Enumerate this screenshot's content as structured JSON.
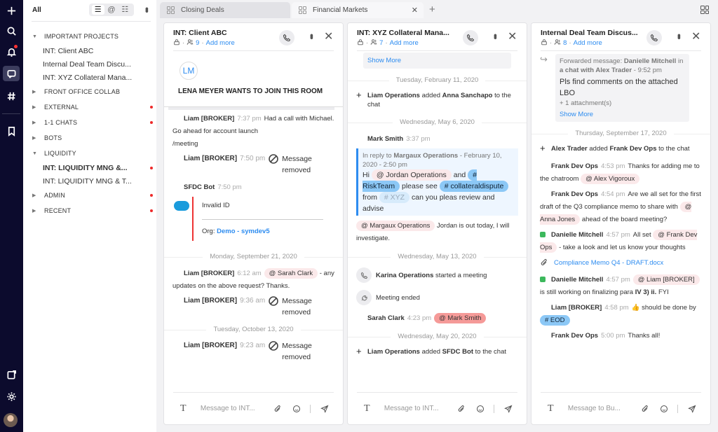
{
  "rail": {
    "icons": [
      "plus-icon",
      "search-icon",
      "bell-icon",
      "chat-icon",
      "hash-icon",
      "bookmark-icon",
      "new-window-icon",
      "gear-icon"
    ],
    "active": "chat-icon",
    "notification_color": "#ff3333"
  },
  "sidebar": {
    "filter_label": "All",
    "view_icons": [
      "list-view-icon",
      "mentions-icon",
      "compact-view-icon"
    ],
    "tree": [
      {
        "label": "IMPORTANT PROJECTS",
        "expanded": true,
        "unread": false,
        "children": [
          {
            "label": "INT: Client ABC"
          },
          {
            "label": "Internal Deal Team Discu..."
          },
          {
            "label": "INT: XYZ Collateral Mana..."
          }
        ]
      },
      {
        "label": "FRONT OFFICE COLLAB",
        "expanded": false,
        "unread": false
      },
      {
        "label": "EXTERNAL",
        "expanded": false,
        "unread": true
      },
      {
        "label": "1-1 CHATS",
        "expanded": false,
        "unread": true
      },
      {
        "label": "BOTS",
        "expanded": false,
        "unread": false
      },
      {
        "label": "LIQUIDITY",
        "expanded": true,
        "unread": false,
        "children": [
          {
            "label": "INT: LIQUIDITY MNG &...",
            "bold": true,
            "unread": true
          },
          {
            "label": "INT: LIQUIDITY MNG & T..."
          }
        ]
      },
      {
        "label": "ADMIN",
        "expanded": false,
        "unread": true
      },
      {
        "label": "RECENT",
        "expanded": false,
        "unread": true
      }
    ]
  },
  "tabs": [
    {
      "label": "Closing Deals",
      "active": false
    },
    {
      "label": "Financial Markets",
      "active": true
    }
  ],
  "columns": [
    {
      "title": "INT: Client ABC",
      "members": "9",
      "add_more": "Add more",
      "placeholder": "Message to INT...",
      "banner": {
        "initials": "LM",
        "text": "LENA MEYER WANTS TO JOIN THIS ROOM"
      },
      "items": [
        {
          "type": "msg",
          "author": "Liam [BROKER]",
          "time": "7:37 pm",
          "body": [
            {
              "k": "text",
              "t": "Had a call with Michael. Go ahead for account launch"
            }
          ]
        },
        {
          "type": "line",
          "body": [
            {
              "k": "text",
              "t": "/meeting"
            }
          ]
        },
        {
          "type": "removed",
          "author": "Liam [BROKER]",
          "time": "7:50 pm",
          "text": "Message removed"
        },
        {
          "type": "bot",
          "author": "SFDC Bot",
          "time": "7:50 pm",
          "line1": "Invalid ID",
          "org_label": "Org:",
          "org_link": "Demo - symdev5"
        },
        {
          "type": "date",
          "text": "Monday, September 21, 2020"
        },
        {
          "type": "msg",
          "author": "Liam [BROKER]",
          "time": "6:12 am",
          "body": [
            {
              "k": "mention",
              "t": "@ Sarah Clark"
            },
            {
              "k": "text",
              "t": " - any updates on the above request? Thanks."
            }
          ]
        },
        {
          "type": "removed",
          "author": "Liam [BROKER]",
          "time": "9:36 am",
          "text": "Message removed"
        },
        {
          "type": "date",
          "text": "Tuesday, October 13, 2020"
        },
        {
          "type": "removed",
          "author": "Liam [BROKER]",
          "time": "9:23 am",
          "text": "Message removed"
        }
      ]
    },
    {
      "title": "INT: XYZ Collateral Mana...",
      "members": "7",
      "add_more": "Add more",
      "placeholder": "Message to INT...",
      "items": [
        {
          "type": "showmore",
          "text": "Show More"
        },
        {
          "type": "date",
          "text": "Tuesday, February 11, 2020"
        },
        {
          "type": "sys",
          "icon": "plus-icon",
          "body": [
            {
              "k": "bold",
              "t": "Liam Operations"
            },
            {
              "k": "text",
              "t": " added "
            },
            {
              "k": "bold",
              "t": "Anna Sanchapo"
            },
            {
              "k": "text",
              "t": " to the chat"
            }
          ]
        },
        {
          "type": "date",
          "text": "Wednesday, May 6, 2020"
        },
        {
          "type": "msg",
          "author": "Mark Smith",
          "time": "3:37 pm",
          "body": []
        },
        {
          "type": "quote",
          "head": [
            {
              "k": "text",
              "t": "In reply to "
            },
            {
              "k": "bold",
              "t": "Margaux Operations"
            },
            {
              "k": "text",
              "t": " - February 10, 2020 - 2:50 pm"
            }
          ],
          "body": [
            {
              "k": "text",
              "t": "Hi "
            },
            {
              "k": "mention",
              "t": "@ Jordan Operations"
            },
            {
              "k": "text",
              "t": " and "
            },
            {
              "k": "tag",
              "t": "# RiskTeam"
            },
            {
              "k": "text",
              "t": " please see "
            },
            {
              "k": "tag",
              "t": "# collateraldispute"
            },
            {
              "k": "text",
              "t": " from "
            },
            {
              "k": "tag-faded",
              "t": "# XYZ"
            },
            {
              "k": "text",
              "t": " can you pleas review and advise"
            }
          ],
          "show_more": "Show More"
        },
        {
          "type": "line",
          "body": [
            {
              "k": "mention",
              "t": "@ Margaux Operations"
            },
            {
              "k": "text",
              "t": " Jordan is out today, I will investigate."
            }
          ]
        },
        {
          "type": "date",
          "text": "Wednesday, May 13, 2020"
        },
        {
          "type": "sys",
          "icon": "phone-icon",
          "body": [
            {
              "k": "bold",
              "t": "Karina Operations"
            },
            {
              "k": "text",
              "t": " started a meeting"
            }
          ]
        },
        {
          "type": "sys",
          "icon": "phone-end-icon",
          "body": [
            {
              "k": "text",
              "t": "Meeting ended"
            }
          ]
        },
        {
          "type": "msg",
          "author": "Sarah Clark",
          "time": "4:23 pm",
          "body": [
            {
              "k": "mention-hot",
              "t": "@ Mark Smith"
            }
          ]
        },
        {
          "type": "date",
          "text": "Wednesday, May 20, 2020"
        },
        {
          "type": "sys",
          "icon": "plus-icon",
          "body": [
            {
              "k": "bold",
              "t": "Liam Operations"
            },
            {
              "k": "text",
              "t": " added "
            },
            {
              "k": "bold",
              "t": "SFDC Bot"
            },
            {
              "k": "text",
              "t": " to the chat"
            }
          ]
        }
      ]
    },
    {
      "title": "Internal Deal Team Discus...",
      "members": "8",
      "add_more": "Add more",
      "placeholder": "Message to Bu...",
      "items": [
        {
          "type": "forward",
          "head": [
            {
              "k": "text",
              "t": "Forwarded message: "
            },
            {
              "k": "bold",
              "t": "Danielle Mitchell"
            },
            {
              "k": "text",
              "t": " in "
            },
            {
              "k": "bold",
              "t": "a chat with Alex Trader"
            },
            {
              "k": "text",
              "t": " - 9:52 pm"
            }
          ],
          "text": "Pls find comments on the attached LBO",
          "attachments": "+ 1 attachment(s)",
          "show_more": "Show More"
        },
        {
          "type": "date",
          "text": "Thursday, September 17, 2020"
        },
        {
          "type": "sys",
          "icon": "plus-icon",
          "body": [
            {
              "k": "bold",
              "t": "Alex Trader"
            },
            {
              "k": "text",
              "t": " added "
            },
            {
              "k": "bold",
              "t": "Frank Dev Ops"
            },
            {
              "k": "text",
              "t": " to the chat"
            }
          ]
        },
        {
          "type": "msg",
          "author": "Frank Dev Ops",
          "time": "4:53 pm",
          "body": [
            {
              "k": "text",
              "t": "Thanks for adding me to the chatroom "
            },
            {
              "k": "mention",
              "t": "@ Alex Vigoroux"
            }
          ]
        },
        {
          "type": "msg",
          "author": "Frank Dev Ops",
          "time": "4:54 pm",
          "body": [
            {
              "k": "text",
              "t": "Are we all set for the first draft of the Q3 compliance memo to share with "
            },
            {
              "k": "mention",
              "t": "@ Anna Jones"
            },
            {
              "k": "text",
              "t": " ahead of the board meeting?"
            }
          ]
        },
        {
          "type": "msg",
          "check": true,
          "author": "Danielle Mitchell",
          "time": "4:57 pm",
          "body": [
            {
              "k": "text",
              "t": "All set "
            },
            {
              "k": "mention",
              "t": "@ Frank Dev Ops"
            },
            {
              "k": "text",
              "t": " - take a look and let us know your thoughts"
            }
          ]
        },
        {
          "type": "attach",
          "text": "Compliance Memo Q4 - DRAFT.docx"
        },
        {
          "type": "msg",
          "check": true,
          "author": "Danielle Mitchell",
          "time": "4:57 pm",
          "body": [
            {
              "k": "mention",
              "t": "@ Liam [BROKER]"
            },
            {
              "k": "text",
              "t": " is still working on finalizing para "
            },
            {
              "k": "bold",
              "t": "IV 3) ii."
            },
            {
              "k": "text",
              "t": " FYI"
            }
          ]
        },
        {
          "type": "msg",
          "author": "Liam [BROKER]",
          "time": "4:58 pm",
          "body": [
            {
              "k": "text",
              "t": "👍 should be done by "
            },
            {
              "k": "tag",
              "t": "# EOD"
            }
          ]
        },
        {
          "type": "msg",
          "author": "Frank Dev Ops",
          "time": "5:00 pm",
          "body": [
            {
              "k": "text",
              "t": "Thanks all!"
            }
          ]
        }
      ]
    }
  ]
}
